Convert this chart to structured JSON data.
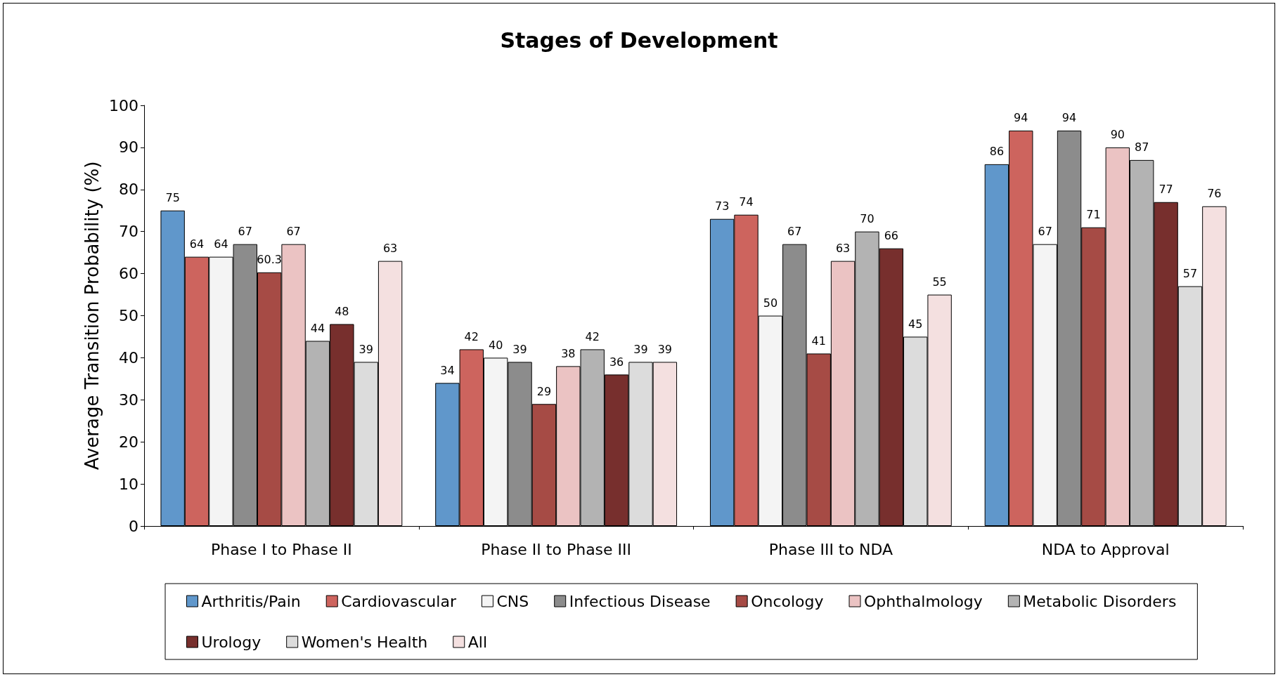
{
  "chart_data": {
    "type": "bar",
    "title": "Stages of Development",
    "ylabel": "Average Transition Probability (%)",
    "categories": [
      "Phase I to Phase II",
      "Phase II to Phase III",
      "Phase III to NDA",
      "NDA to Approval"
    ],
    "series": [
      {
        "name": "Arthritis/Pain",
        "color": "#6097cb",
        "values": [
          75,
          34,
          73,
          86
        ]
      },
      {
        "name": "Cardiovascular",
        "color": "#cd645e",
        "values": [
          64,
          42,
          74,
          94
        ]
      },
      {
        "name": "CNS",
        "color": "#f4f4f4",
        "values": [
          64,
          40,
          50,
          67
        ]
      },
      {
        "name": "Infectious Disease",
        "color": "#8c8c8c",
        "values": [
          67,
          39,
          67,
          94
        ]
      },
      {
        "name": "Oncology",
        "color": "#a64b45",
        "values": [
          60.3,
          29,
          41,
          71
        ]
      },
      {
        "name": "Ophthalmology",
        "color": "#ebc3c3",
        "values": [
          67,
          38,
          63,
          90
        ]
      },
      {
        "name": "Metabolic Disorders",
        "color": "#b3b3b3",
        "values": [
          44,
          42,
          70,
          87
        ]
      },
      {
        "name": "Urology",
        "color": "#772f2d",
        "values": [
          48,
          36,
          66,
          77
        ]
      },
      {
        "name": "Women's Health",
        "color": "#dcdcdc",
        "values": [
          39,
          39,
          45,
          57
        ]
      },
      {
        "name": "All",
        "color": "#f4e0e0",
        "values": [
          63,
          39,
          55,
          76
        ]
      }
    ],
    "ylim": [
      0,
      100
    ],
    "yticks": [
      0,
      10,
      20,
      30,
      40,
      50,
      60,
      70,
      80,
      90,
      100
    ],
    "grid": false,
    "legend": "bottom",
    "data_labels": true
  }
}
